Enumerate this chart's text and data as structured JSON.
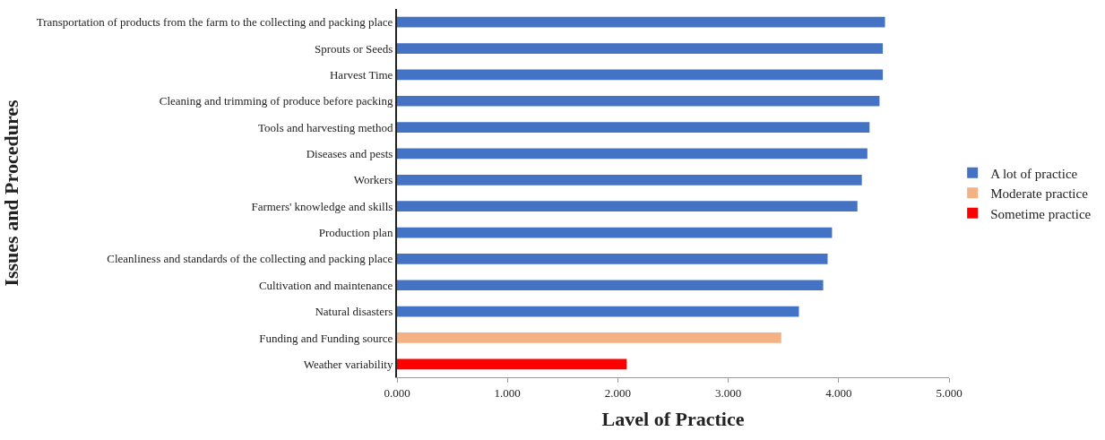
{
  "chart_data": {
    "type": "bar",
    "orientation": "horizontal",
    "stacked": true,
    "xlabel": "Lavel of Practice",
    "ylabel": "Issues and Procedures",
    "categories": [
      "Transportation of products from the farm to the collecting and packing place",
      "Sprouts or Seeds",
      "Harvest Time",
      "Cleaning and trimming of produce before packing",
      "Tools and harvesting method",
      "Diseases and pests",
      "Workers",
      "Farmers' knowledge and skills",
      "Production plan",
      "Cleanliness and standards of the collecting and packing place",
      "Cultivation and maintenance",
      "Natural disasters",
      "Funding and Funding source",
      "Weather variability"
    ],
    "series": [
      {
        "name": "A lot of practice",
        "color": "#4472c4",
        "values": [
          4.42,
          4.4,
          4.4,
          4.37,
          4.28,
          4.26,
          4.21,
          4.17,
          3.94,
          3.9,
          3.86,
          3.64,
          null,
          null
        ]
      },
      {
        "name": "Moderate practice",
        "color": "#f4b183",
        "values": [
          null,
          null,
          null,
          null,
          null,
          null,
          null,
          null,
          null,
          null,
          null,
          null,
          3.48,
          null
        ]
      },
      {
        "name": "Sometime practice",
        "color": "#ff0000",
        "values": [
          null,
          null,
          null,
          null,
          null,
          null,
          null,
          null,
          null,
          null,
          null,
          null,
          null,
          2.08
        ]
      }
    ],
    "xlim": [
      0,
      5
    ],
    "xticks": [
      {
        "value": 0,
        "label": "0.000"
      },
      {
        "value": 1,
        "label": "1.000"
      },
      {
        "value": 2,
        "label": "2.000"
      },
      {
        "value": 3,
        "label": "3.000"
      },
      {
        "value": 4,
        "label": "4.000"
      },
      {
        "value": 5,
        "label": "5.000"
      }
    ],
    "legend": "right"
  }
}
